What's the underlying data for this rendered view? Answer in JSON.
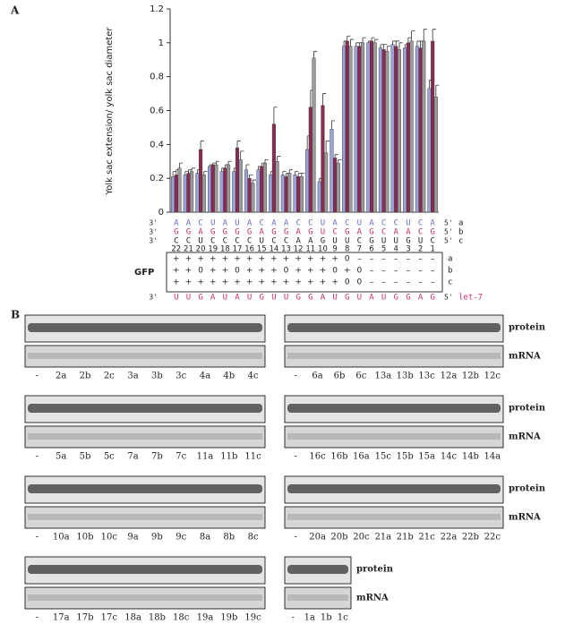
{
  "panel_labels": [
    "A",
    "B"
  ],
  "chart_data": {
    "type": "bar",
    "ylabel": "Yolk sac extension/ yolk sac diameter",
    "categories": [
      "22",
      "21",
      "20",
      "19",
      "18",
      "17",
      "16",
      "15",
      "14",
      "13",
      "12",
      "11",
      "10",
      "9",
      "8",
      "7",
      "6",
      "5",
      "4",
      "3",
      "2",
      "1"
    ],
    "ylim": [
      0,
      1.2
    ],
    "yticks": [
      0,
      0.2,
      0.4,
      0.6,
      0.8,
      1,
      1.2
    ],
    "series": [
      {
        "name": "a",
        "color": "#9aa3d8",
        "values": [
          0.21,
          0.22,
          0.23,
          0.27,
          0.24,
          0.24,
          0.25,
          0.25,
          0.22,
          0.22,
          0.22,
          0.37,
          0.18,
          0.49,
          0.98,
          0.98,
          1.0,
          0.97,
          0.99,
          0.97,
          0.98,
          0.73
        ],
        "errors": [
          0.03,
          0.02,
          0.02,
          0.01,
          0.02,
          0.02,
          0.03,
          0.02,
          0.02,
          0.02,
          0.02,
          0.08,
          0.02,
          0.05,
          0.03,
          0.02,
          0.01,
          0.02,
          0.02,
          0.02,
          0.03,
          0.05
        ]
      },
      {
        "name": "b",
        "color": "#8b2a52",
        "values": [
          0.22,
          0.23,
          0.37,
          0.28,
          0.26,
          0.38,
          0.2,
          0.27,
          0.52,
          0.21,
          0.21,
          0.62,
          0.63,
          0.32,
          1.01,
          0.98,
          1.01,
          0.96,
          0.98,
          1.0,
          0.97,
          1.01
        ],
        "errors": [
          0.03,
          0.02,
          0.05,
          0.01,
          0.02,
          0.04,
          0.02,
          0.02,
          0.1,
          0.02,
          0.02,
          0.1,
          0.07,
          0.02,
          0.03,
          0.02,
          0.02,
          0.03,
          0.03,
          0.03,
          0.04,
          0.07
        ]
      },
      {
        "name": "c",
        "color": "#9a9a9a",
        "values": [
          0.26,
          0.24,
          0.22,
          0.28,
          0.28,
          0.31,
          0.17,
          0.29,
          0.3,
          0.23,
          0.21,
          0.91,
          0.35,
          0.29,
          0.98,
          1.0,
          1.0,
          0.95,
          0.96,
          1.01,
          1.01,
          0.68
        ],
        "errors": [
          0.03,
          0.02,
          0.02,
          0.02,
          0.02,
          0.05,
          0.02,
          0.02,
          0.03,
          0.02,
          0.02,
          0.04,
          0.07,
          0.02,
          0.04,
          0.03,
          0.02,
          0.03,
          0.04,
          0.06,
          0.07,
          0.07
        ]
      }
    ]
  },
  "sequences": {
    "ends": [
      "3'",
      "5'"
    ],
    "rows": [
      {
        "name": "a",
        "color": "#6a6fc8",
        "bases": [
          "A",
          "A",
          "C",
          "U",
          "A",
          "U",
          "A",
          "C",
          "A",
          "A",
          "C",
          "C",
          "U",
          "A",
          "C",
          "U",
          "A",
          "C",
          "C",
          "U",
          "C",
          "A"
        ]
      },
      {
        "name": "b",
        "color": "#c0305a",
        "bases": [
          "G",
          "G",
          "A",
          "G",
          "G",
          "G",
          "G",
          "A",
          "G",
          "G",
          "A",
          "G",
          "U",
          "C",
          "G",
          "A",
          "G",
          "C",
          "A",
          "A",
          "C",
          "G"
        ]
      },
      {
        "name": "c",
        "color": "#222222",
        "bases": [
          "C",
          "C",
          "U",
          "C",
          "C",
          "C",
          "C",
          "U",
          "C",
          "C",
          "A",
          "A",
          "G",
          "U",
          "U",
          "C",
          "G",
          "U",
          "U",
          "G",
          "U",
          "C"
        ]
      }
    ],
    "gfp_label": "GFP",
    "gfp_rows": [
      {
        "name": "a",
        "marks": [
          "+",
          "+",
          "+",
          "+",
          "+",
          "+",
          "+",
          "+",
          "+",
          "+",
          "+",
          "+",
          "+",
          "+",
          "0",
          "–",
          "–",
          "–",
          "–",
          "–",
          "–",
          "–"
        ]
      },
      {
        "name": "b",
        "marks": [
          "+",
          "+",
          "0",
          "+",
          "+",
          "0",
          "+",
          "+",
          "+",
          "0",
          "+",
          "+",
          "+",
          "0",
          "+",
          "0",
          "–",
          "–",
          "–",
          "–",
          "–",
          "–"
        ]
      },
      {
        "name": "c",
        "marks": [
          "+",
          "+",
          "+",
          "+",
          "+",
          "+",
          "+",
          "+",
          "+",
          "+",
          "+",
          "+",
          "+",
          "+",
          "0",
          "0",
          "–",
          "–",
          "–",
          "–",
          "–",
          "–"
        ]
      }
    ],
    "target": {
      "name": "let-7",
      "color": "#d0306a",
      "bases": [
        "U",
        "U",
        "G",
        "A",
        "U",
        "A",
        "U",
        "G",
        "U",
        "U",
        "G",
        "G",
        "A",
        "U",
        "G",
        "U",
        "A",
        "U",
        "G",
        "G",
        "A",
        "G"
      ]
    }
  },
  "blots": {
    "row_labels": [
      "protein",
      "mRNA"
    ],
    "left": [
      {
        "lanes": [
          "-",
          "2a",
          "2b",
          "2c",
          "3a",
          "3b",
          "3c",
          "4a",
          "4b",
          "4c"
        ]
      },
      {
        "lanes": [
          "-",
          "5a",
          "5b",
          "5c",
          "7a",
          "7b",
          "7c",
          "11a",
          "11b",
          "11c"
        ]
      },
      {
        "lanes": [
          "-",
          "10a",
          "10b",
          "10c",
          "9a",
          "9b",
          "9c",
          "8a",
          "8b",
          "8c"
        ]
      },
      {
        "lanes": [
          "-",
          "17a",
          "17b",
          "17c",
          "18a",
          "18b",
          "18c",
          "19a",
          "19b",
          "19c"
        ]
      }
    ],
    "right": [
      {
        "lanes": [
          "-",
          "6a",
          "6b",
          "6c",
          "13a",
          "13b",
          "13c",
          "12a",
          "12b",
          "12c"
        ]
      },
      {
        "lanes": [
          "-",
          "16c",
          "16b",
          "16a",
          "15c",
          "15b",
          "15a",
          "14c",
          "14b",
          "14a"
        ]
      },
      {
        "lanes": [
          "-",
          "20a",
          "20b",
          "20c",
          "21a",
          "21b",
          "21c",
          "22a",
          "22b",
          "22c"
        ]
      },
      {
        "lanes": [
          "-",
          "1a",
          "1b",
          "1c"
        ]
      }
    ]
  }
}
